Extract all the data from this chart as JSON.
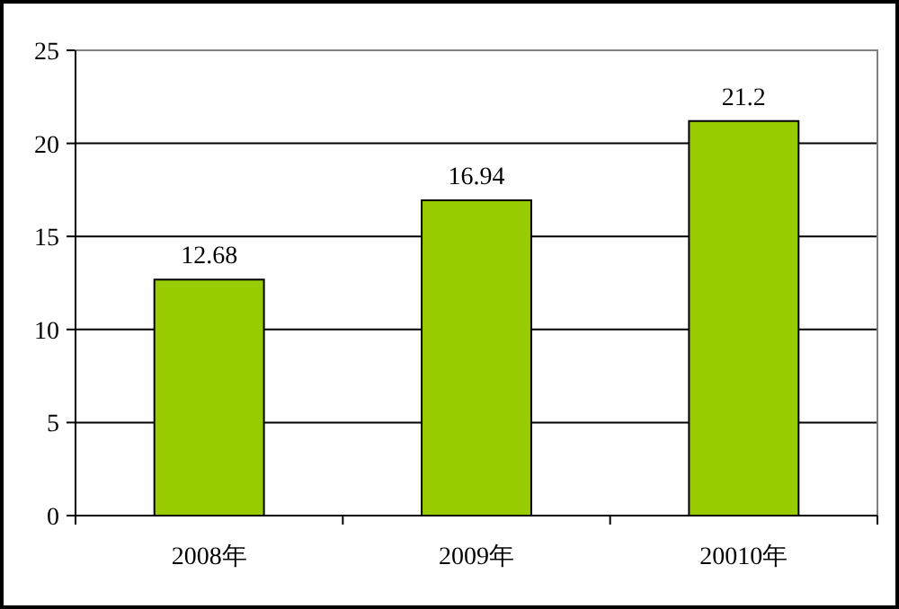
{
  "chart_data": {
    "type": "bar",
    "categories": [
      "2008年",
      "2009年",
      "20010年"
    ],
    "values": [
      12.68,
      16.94,
      21.2
    ],
    "color": "#99cc00",
    "ylim": [
      0,
      25
    ],
    "yticks": [
      0,
      5,
      10,
      15,
      20,
      25
    ],
    "grid": "y",
    "data_labels": true
  }
}
